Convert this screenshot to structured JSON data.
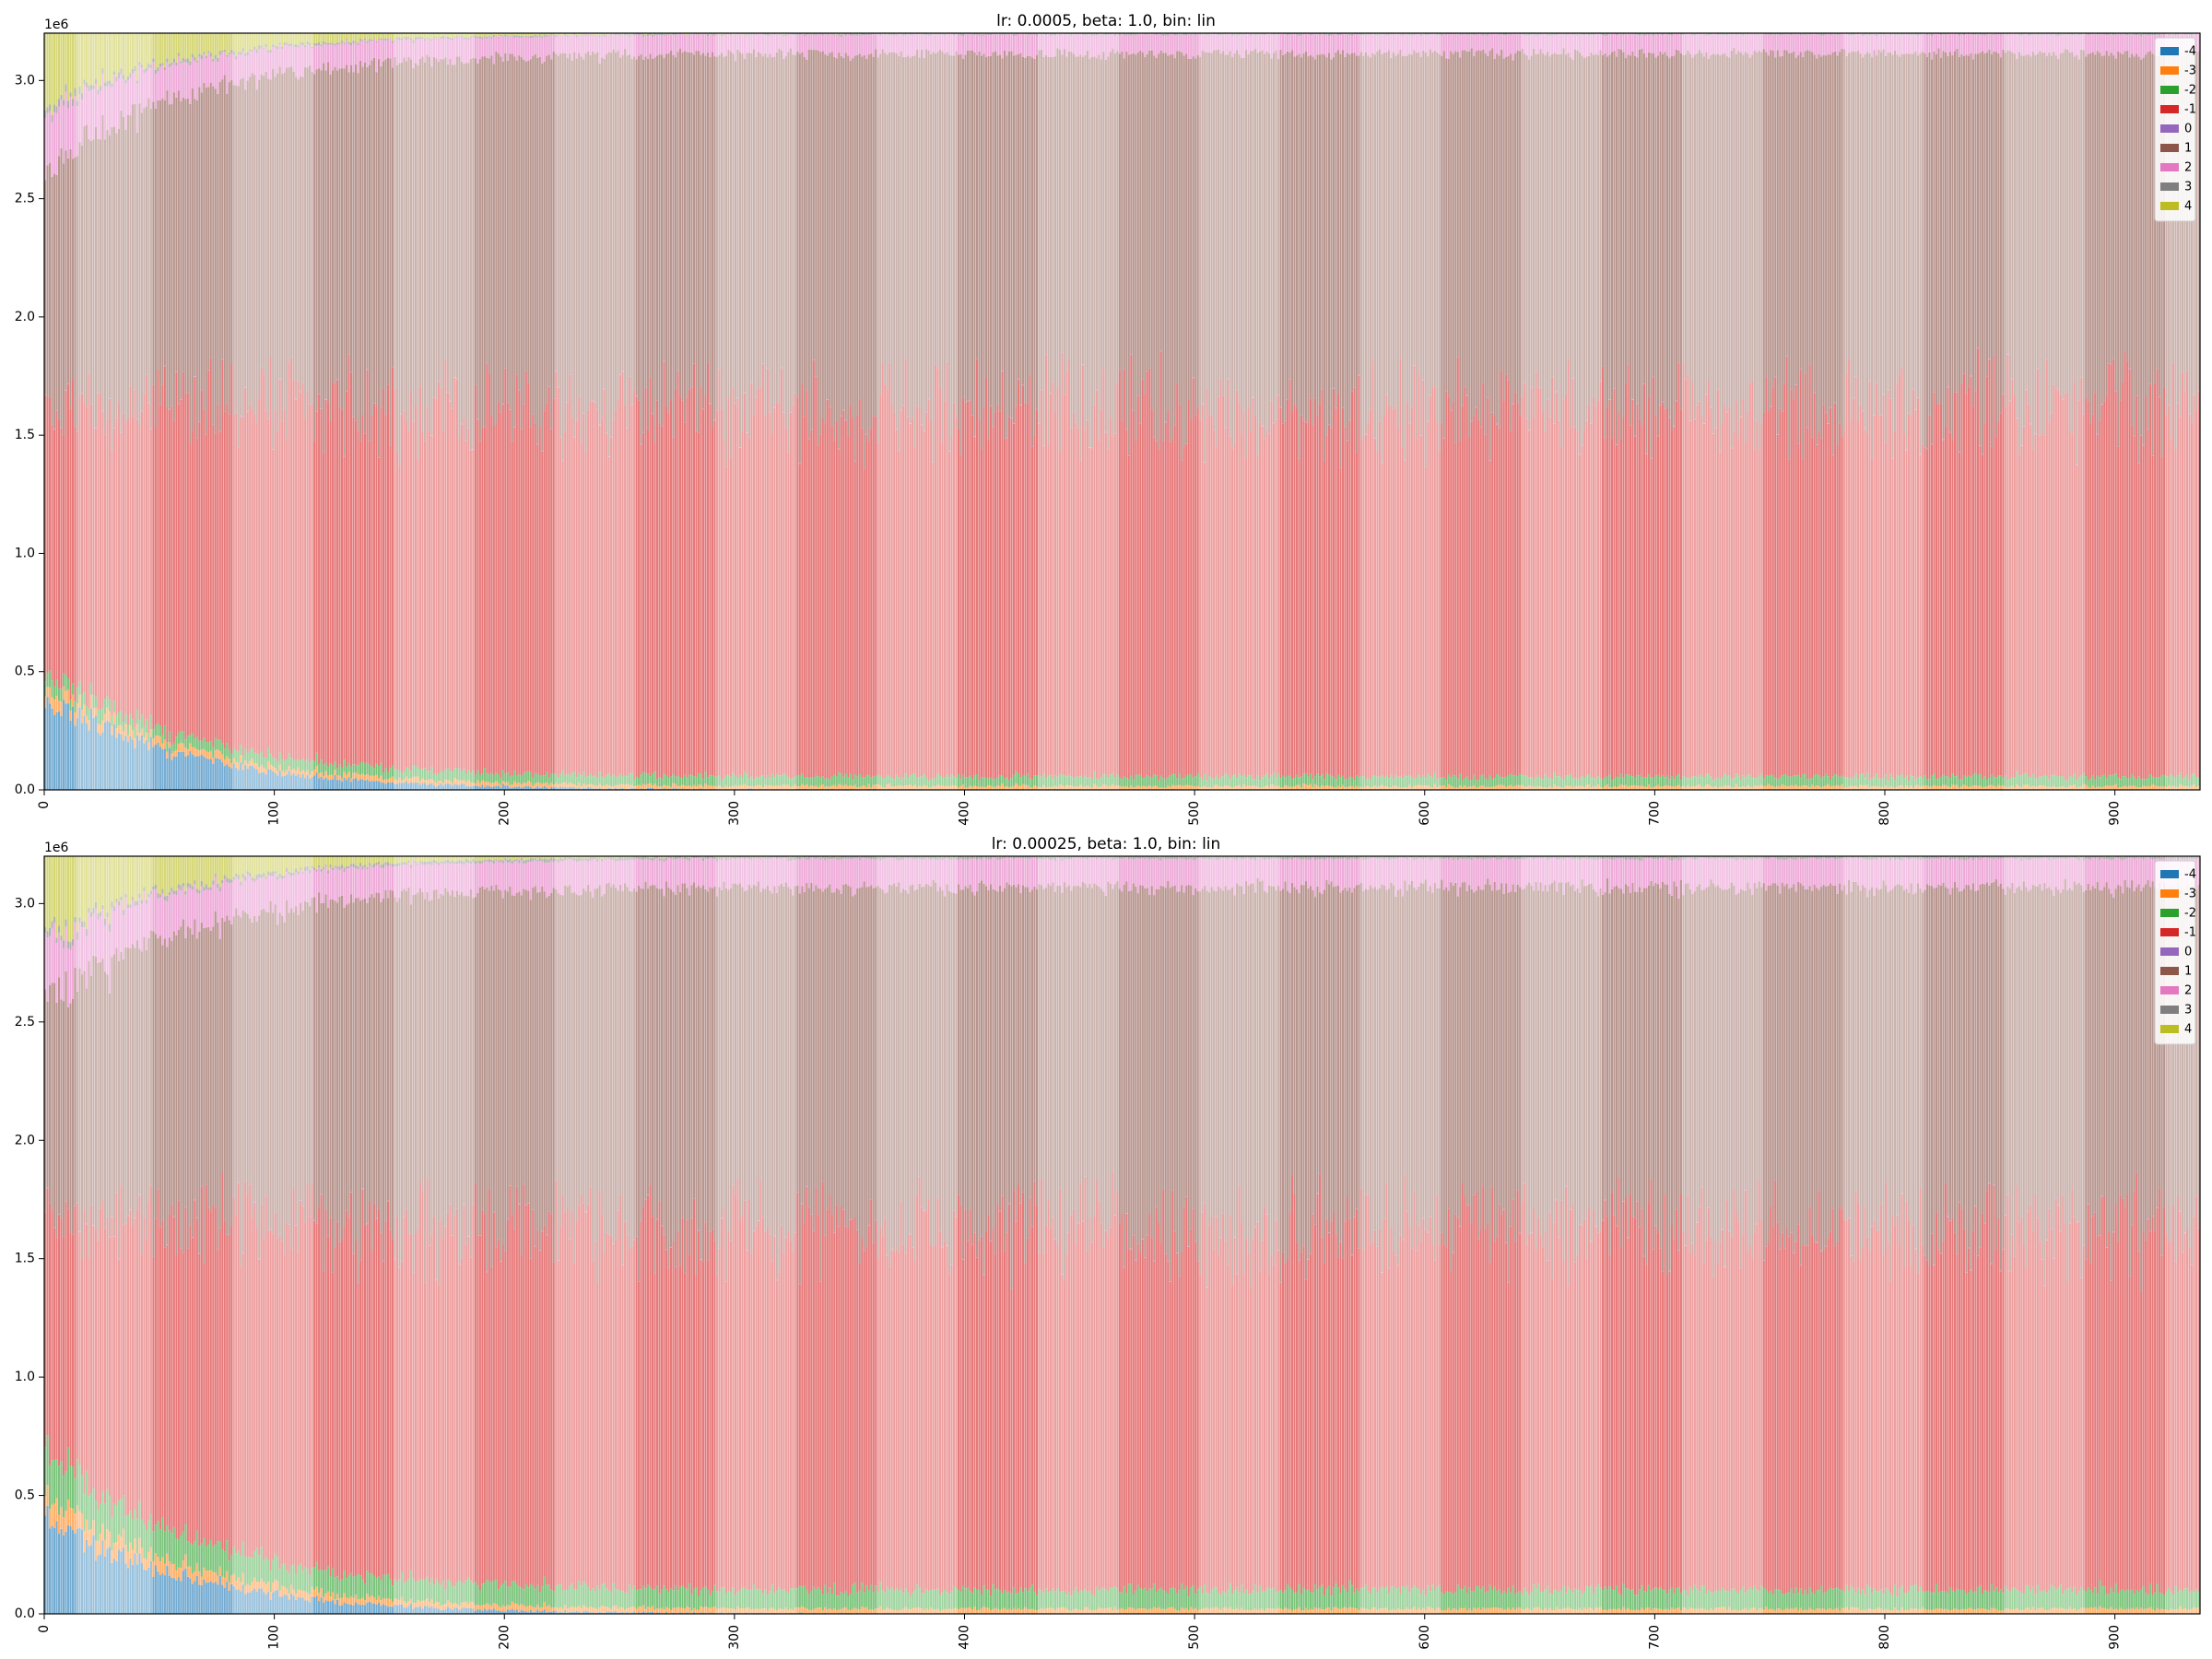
{
  "chart_data": [
    {
      "type": "bar",
      "stacked": true,
      "title": "lr: 0.0005, beta: 1.0, bin: lin",
      "xlabel": "",
      "ylabel": "",
      "xlim": [
        0,
        937
      ],
      "ylim": [
        0,
        3.2
      ],
      "y_offset_label": "1e6",
      "x_ticks": [
        0,
        100,
        200,
        300,
        400,
        500,
        600,
        700,
        800,
        900
      ],
      "x_tick_labels": [
        "0",
        "100",
        "200",
        "300",
        "400",
        "500",
        "600",
        "700",
        "800",
        "900"
      ],
      "y_ticks": [
        0.0,
        0.5,
        1.0,
        1.5,
        2.0,
        2.5,
        3.0
      ],
      "y_tick_labels": [
        "0.0",
        "0.5",
        "1.0",
        "1.5",
        "2.0",
        "2.5",
        "3.0"
      ],
      "legend_position": "top-right",
      "total": 3.2,
      "x_count": 937,
      "darker_shade_blocks": [
        [
          0,
          14
        ],
        [
          47,
          82
        ],
        [
          117,
          152
        ],
        [
          187,
          222
        ],
        [
          257,
          292
        ],
        [
          327,
          362
        ],
        [
          397,
          432
        ],
        [
          467,
          502
        ],
        [
          537,
          572
        ],
        [
          607,
          642
        ],
        [
          677,
          712
        ],
        [
          747,
          782
        ],
        [
          817,
          852
        ],
        [
          887,
          922
        ]
      ],
      "series": [
        {
          "name": "-4",
          "color": "#1f77b4",
          "start_value": 0.4,
          "end_value": 0.0
        },
        {
          "name": "-3",
          "color": "#ff7f0e",
          "start_value": 0.06,
          "end_value": 0.015
        },
        {
          "name": "-2",
          "color": "#2ca02c",
          "start_value": 0.06,
          "end_value": 0.04
        },
        {
          "name": "-1",
          "color": "#d62728",
          "start_value": 1.1,
          "end_value": 1.55
        },
        {
          "name": "0",
          "color": "#9467bd",
          "start_value": 0.0,
          "end_value": 0.0
        },
        {
          "name": "1",
          "color": "#8c564b",
          "start_value": 1.0,
          "end_value": 1.5
        },
        {
          "name": "2",
          "color": "#e377c2",
          "start_value": 0.25,
          "end_value": 0.08
        },
        {
          "name": "3",
          "color": "#7f7f7f",
          "start_value": 0.03,
          "end_value": 0.005
        },
        {
          "name": "4",
          "color": "#bcbd22",
          "start_value": 0.3,
          "end_value": 0.0
        }
      ]
    },
    {
      "type": "bar",
      "stacked": true,
      "title": "lr: 0.00025, beta: 1.0, bin: lin",
      "xlabel": "",
      "ylabel": "",
      "xlim": [
        0,
        937
      ],
      "ylim": [
        0,
        3.2
      ],
      "y_offset_label": "1e6",
      "x_ticks": [
        0,
        100,
        200,
        300,
        400,
        500,
        600,
        700,
        800,
        900
      ],
      "x_tick_labels": [
        "0",
        "100",
        "200",
        "300",
        "400",
        "500",
        "600",
        "700",
        "800",
        "900"
      ],
      "y_ticks": [
        0.0,
        0.5,
        1.0,
        1.5,
        2.0,
        2.5,
        3.0
      ],
      "y_tick_labels": [
        "0.0",
        "0.5",
        "1.0",
        "1.5",
        "2.0",
        "2.5",
        "3.0"
      ],
      "legend_position": "top-right",
      "total": 3.2,
      "x_count": 937,
      "darker_shade_blocks": [
        [
          0,
          14
        ],
        [
          47,
          82
        ],
        [
          117,
          152
        ],
        [
          187,
          222
        ],
        [
          257,
          292
        ],
        [
          327,
          362
        ],
        [
          397,
          432
        ],
        [
          467,
          502
        ],
        [
          537,
          572
        ],
        [
          607,
          642
        ],
        [
          677,
          712
        ],
        [
          747,
          782
        ],
        [
          817,
          852
        ],
        [
          887,
          922
        ]
      ],
      "series": [
        {
          "name": "-4",
          "color": "#1f77b4",
          "start_value": 0.42,
          "end_value": 0.0
        },
        {
          "name": "-3",
          "color": "#ff7f0e",
          "start_value": 0.1,
          "end_value": 0.02
        },
        {
          "name": "-2",
          "color": "#2ca02c",
          "start_value": 0.2,
          "end_value": 0.08
        },
        {
          "name": "-1",
          "color": "#d62728",
          "start_value": 0.95,
          "end_value": 1.52
        },
        {
          "name": "0",
          "color": "#9467bd",
          "start_value": 0.0,
          "end_value": 0.0
        },
        {
          "name": "1",
          "color": "#8c564b",
          "start_value": 0.9,
          "end_value": 1.45
        },
        {
          "name": "2",
          "color": "#e377c2",
          "start_value": 0.25,
          "end_value": 0.12
        },
        {
          "name": "3",
          "color": "#7f7f7f",
          "start_value": 0.03,
          "end_value": 0.01
        },
        {
          "name": "4",
          "color": "#bcbd22",
          "start_value": 0.35,
          "end_value": 0.0
        }
      ]
    }
  ]
}
